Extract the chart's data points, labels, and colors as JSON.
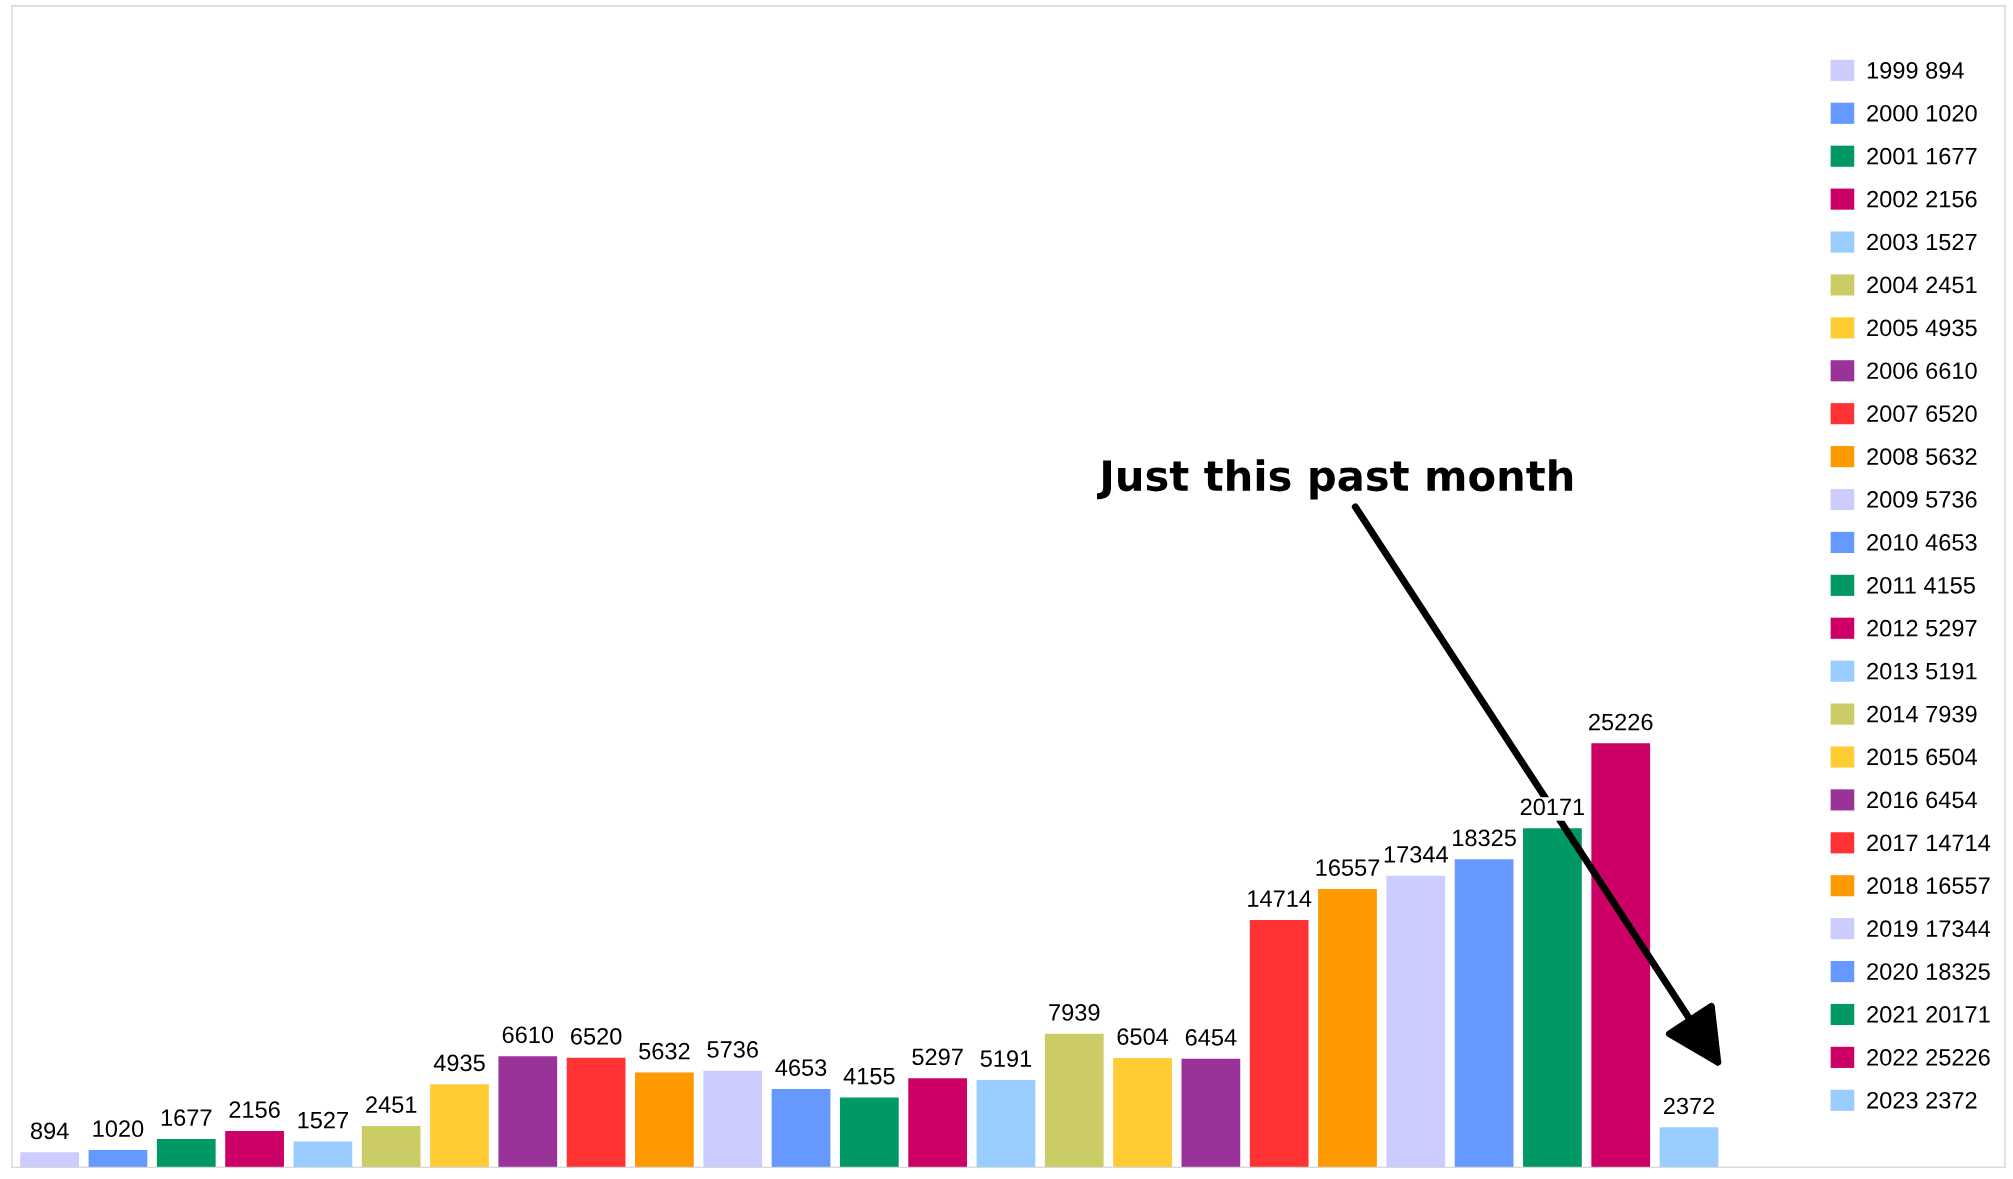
{
  "chart_data": {
    "type": "bar",
    "categories": [
      null,
      null,
      null,
      null,
      null,
      null,
      null,
      null,
      null,
      null,
      null,
      null,
      null,
      null,
      null,
      null,
      null,
      null,
      null,
      null,
      null,
      null,
      null,
      null,
      null
    ],
    "series": [
      {
        "name": "1999 894",
        "color": "#ccccff",
        "values": [
          894,
          null,
          null,
          null,
          null,
          null,
          null,
          null,
          null,
          null,
          null,
          null,
          null,
          null,
          null,
          null,
          null,
          null,
          null,
          null,
          null,
          null,
          null,
          null,
          null
        ]
      },
      {
        "name": "2000 1020",
        "color": "#6699ff",
        "values": [
          null,
          1020,
          null,
          null,
          null,
          null,
          null,
          null,
          null,
          null,
          null,
          null,
          null,
          null,
          null,
          null,
          null,
          null,
          null,
          null,
          null,
          null,
          null,
          null,
          null
        ]
      },
      {
        "name": "2001 1677",
        "color": "#009966",
        "values": [
          null,
          null,
          1677,
          null,
          null,
          null,
          null,
          null,
          null,
          null,
          null,
          null,
          null,
          null,
          null,
          null,
          null,
          null,
          null,
          null,
          null,
          null,
          null,
          null,
          null
        ]
      },
      {
        "name": "2002 2156",
        "color": "#cc0066",
        "values": [
          null,
          null,
          null,
          2156,
          null,
          null,
          null,
          null,
          null,
          null,
          null,
          null,
          null,
          null,
          null,
          null,
          null,
          null,
          null,
          null,
          null,
          null,
          null,
          null,
          null
        ]
      },
      {
        "name": "2003 1527",
        "color": "#99ccff",
        "values": [
          null,
          null,
          null,
          null,
          1527,
          null,
          null,
          null,
          null,
          null,
          null,
          null,
          null,
          null,
          null,
          null,
          null,
          null,
          null,
          null,
          null,
          null,
          null,
          null,
          null
        ]
      },
      {
        "name": "2004 2451",
        "color": "#cccc66",
        "values": [
          null,
          null,
          null,
          null,
          null,
          2451,
          null,
          null,
          null,
          null,
          null,
          null,
          null,
          null,
          null,
          null,
          null,
          null,
          null,
          null,
          null,
          null,
          null,
          null,
          null
        ]
      },
      {
        "name": "2005 4935",
        "color": "#ffcc33",
        "values": [
          null,
          null,
          null,
          null,
          null,
          null,
          4935,
          null,
          null,
          null,
          null,
          null,
          null,
          null,
          null,
          null,
          null,
          null,
          null,
          null,
          null,
          null,
          null,
          null,
          null
        ]
      },
      {
        "name": "2006 6610",
        "color": "#993399",
        "values": [
          null,
          null,
          null,
          null,
          null,
          null,
          null,
          6610,
          null,
          null,
          null,
          null,
          null,
          null,
          null,
          null,
          null,
          null,
          null,
          null,
          null,
          null,
          null,
          null,
          null
        ]
      },
      {
        "name": "2007 6520",
        "color": "#ff3333",
        "values": [
          null,
          null,
          null,
          null,
          null,
          null,
          null,
          null,
          6520,
          null,
          null,
          null,
          null,
          null,
          null,
          null,
          null,
          null,
          null,
          null,
          null,
          null,
          null,
          null,
          null
        ]
      },
      {
        "name": "2008 5632",
        "color": "#ff9900",
        "values": [
          null,
          null,
          null,
          null,
          null,
          null,
          null,
          null,
          null,
          5632,
          null,
          null,
          null,
          null,
          null,
          null,
          null,
          null,
          null,
          null,
          null,
          null,
          null,
          null,
          null
        ]
      },
      {
        "name": "2009 5736",
        "color": "#ccccff",
        "values": [
          null,
          null,
          null,
          null,
          null,
          null,
          null,
          null,
          null,
          null,
          5736,
          null,
          null,
          null,
          null,
          null,
          null,
          null,
          null,
          null,
          null,
          null,
          null,
          null,
          null
        ]
      },
      {
        "name": "2010 4653",
        "color": "#6699ff",
        "values": [
          null,
          null,
          null,
          null,
          null,
          null,
          null,
          null,
          null,
          null,
          null,
          4653,
          null,
          null,
          null,
          null,
          null,
          null,
          null,
          null,
          null,
          null,
          null,
          null,
          null
        ]
      },
      {
        "name": "2011 4155",
        "color": "#009966",
        "values": [
          null,
          null,
          null,
          null,
          null,
          null,
          null,
          null,
          null,
          null,
          null,
          null,
          4155,
          null,
          null,
          null,
          null,
          null,
          null,
          null,
          null,
          null,
          null,
          null,
          null
        ]
      },
      {
        "name": "2012 5297",
        "color": "#cc0066",
        "values": [
          null,
          null,
          null,
          null,
          null,
          null,
          null,
          null,
          null,
          null,
          null,
          null,
          null,
          5297,
          null,
          null,
          null,
          null,
          null,
          null,
          null,
          null,
          null,
          null,
          null
        ]
      },
      {
        "name": "2013 5191",
        "color": "#99ccff",
        "values": [
          null,
          null,
          null,
          null,
          null,
          null,
          null,
          null,
          null,
          null,
          null,
          null,
          null,
          null,
          5191,
          null,
          null,
          null,
          null,
          null,
          null,
          null,
          null,
          null,
          null
        ]
      },
      {
        "name": "2014 7939",
        "color": "#cccc66",
        "values": [
          null,
          null,
          null,
          null,
          null,
          null,
          null,
          null,
          null,
          null,
          null,
          null,
          null,
          null,
          null,
          7939,
          null,
          null,
          null,
          null,
          null,
          null,
          null,
          null,
          null
        ]
      },
      {
        "name": "2015 6504",
        "color": "#ffcc33",
        "values": [
          null,
          null,
          null,
          null,
          null,
          null,
          null,
          null,
          null,
          null,
          null,
          null,
          null,
          null,
          null,
          null,
          6504,
          null,
          null,
          null,
          null,
          null,
          null,
          null,
          null
        ]
      },
      {
        "name": "2016 6454",
        "color": "#993399",
        "values": [
          null,
          null,
          null,
          null,
          null,
          null,
          null,
          null,
          null,
          null,
          null,
          null,
          null,
          null,
          null,
          null,
          null,
          6454,
          null,
          null,
          null,
          null,
          null,
          null,
          null
        ]
      },
      {
        "name": "2017 14714",
        "color": "#ff3333",
        "values": [
          null,
          null,
          null,
          null,
          null,
          null,
          null,
          null,
          null,
          null,
          null,
          null,
          null,
          null,
          null,
          null,
          null,
          null,
          14714,
          null,
          null,
          null,
          null,
          null,
          null
        ]
      },
      {
        "name": "2018 16557",
        "color": "#ff9900",
        "values": [
          null,
          null,
          null,
          null,
          null,
          null,
          null,
          null,
          null,
          null,
          null,
          null,
          null,
          null,
          null,
          null,
          null,
          null,
          null,
          16557,
          null,
          null,
          null,
          null,
          null
        ]
      },
      {
        "name": "2019 17344",
        "color": "#ccccff",
        "values": [
          null,
          null,
          null,
          null,
          null,
          null,
          null,
          null,
          null,
          null,
          null,
          null,
          null,
          null,
          null,
          null,
          null,
          null,
          null,
          null,
          17344,
          null,
          null,
          null,
          null
        ]
      },
      {
        "name": "2020 18325",
        "color": "#6699ff",
        "values": [
          null,
          null,
          null,
          null,
          null,
          null,
          null,
          null,
          null,
          null,
          null,
          null,
          null,
          null,
          null,
          null,
          null,
          null,
          null,
          null,
          null,
          18325,
          null,
          null,
          null
        ]
      },
      {
        "name": "2021 20171",
        "color": "#009966",
        "values": [
          null,
          null,
          null,
          null,
          null,
          null,
          null,
          null,
          null,
          null,
          null,
          null,
          null,
          null,
          null,
          null,
          null,
          null,
          null,
          null,
          null,
          null,
          20171,
          null,
          null
        ]
      },
      {
        "name": "2022 25226",
        "color": "#cc0066",
        "values": [
          null,
          null,
          null,
          null,
          null,
          null,
          null,
          null,
          null,
          null,
          null,
          null,
          null,
          null,
          null,
          null,
          null,
          null,
          null,
          null,
          null,
          null,
          null,
          25226,
          null
        ]
      },
      {
        "name": "2023 2372",
        "color": "#99ccff",
        "values": [
          null,
          null,
          null,
          null,
          null,
          null,
          null,
          null,
          null,
          null,
          null,
          null,
          null,
          null,
          null,
          null,
          null,
          null,
          null,
          null,
          null,
          null,
          null,
          null,
          2372
        ]
      }
    ],
    "data_labels": true,
    "legend": "right",
    "stacked": true,
    "annotations": [
      "Just this past month"
    ]
  }
}
